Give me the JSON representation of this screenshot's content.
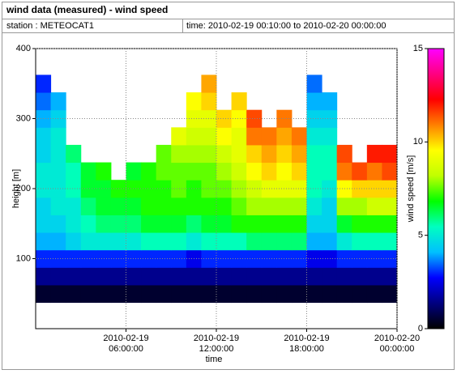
{
  "chart_data": {
    "type": "heatmap",
    "title": "wind data (measured) - wind speed",
    "station": "station : METEOCAT1",
    "time_range": "time: 2010-02-19 00:10:00 to 2010-02-20 00:00:00",
    "xlabel": "time",
    "ylabel": "height [m]",
    "zlabel": "wind speed [m/s]",
    "xlim": [
      0,
      24
    ],
    "xticks": [
      {
        "value": 6,
        "label": "2010-02-19\n06:00:00"
      },
      {
        "value": 12,
        "label": "2010-02-19\n12:00:00"
      },
      {
        "value": 18,
        "label": "2010-02-19\n18:00:00"
      },
      {
        "value": 24,
        "label": "2010-02-20\n00:00:00"
      }
    ],
    "ylim": [
      0,
      400
    ],
    "yticks": [
      100,
      200,
      300,
      400
    ],
    "zlim": [
      0,
      15
    ],
    "zticks": [
      0,
      5,
      10,
      15
    ],
    "grid": true,
    "colormap": [
      "#000000",
      "#000080",
      "#0000ff",
      "#00c0ff",
      "#00ffc0",
      "#00ff00",
      "#c0ff00",
      "#ffff00",
      "#ff8000",
      "#ff0000",
      "#ff0080",
      "#ff00ff"
    ],
    "x": [
      0.5,
      1.5,
      2.5,
      3.5,
      4.5,
      5.5,
      6.5,
      7.5,
      8.5,
      9.5,
      10.5,
      11.5,
      12.5,
      13.5,
      14.5,
      15.5,
      16.5,
      17.5,
      18.5,
      19.5,
      20.5,
      21.5,
      22.5,
      23.5
    ],
    "y": [
      50,
      75,
      100,
      125,
      150,
      175,
      200,
      225,
      250,
      275,
      300,
      325,
      350
    ],
    "z": [
      [
        0.5,
        0.5,
        0.5,
        0.5,
        0.5,
        0.5,
        0.5,
        0.5,
        0.5,
        0.5,
        0.5,
        0.5,
        0.5,
        0.5,
        0.5,
        0.5,
        0.5,
        0.5,
        0.5,
        0.5,
        0.5,
        0.5,
        0.5,
        0.5
      ],
      [
        1.5,
        1.5,
        1.5,
        1.5,
        1.5,
        1.5,
        1.5,
        1.5,
        1.5,
        1.5,
        1.5,
        1.5,
        1.5,
        1.5,
        1.5,
        1.5,
        1.5,
        1.5,
        1.5,
        1.5,
        1.5,
        1.5,
        1.5,
        1.5
      ],
      [
        3,
        3,
        3,
        3,
        3,
        3,
        3,
        3,
        3,
        3,
        2.5,
        3,
        3,
        3,
        3,
        3,
        3,
        3,
        2.5,
        2.5,
        3,
        3,
        3,
        3
      ],
      [
        4,
        4,
        4.5,
        5,
        5,
        5,
        5,
        5.5,
        5.5,
        5.5,
        5,
        5.5,
        5.5,
        5.5,
        6,
        6,
        6,
        6,
        4,
        4,
        5,
        5.5,
        5.5,
        5.5
      ],
      [
        4.5,
        4.5,
        5,
        5.5,
        6,
        6,
        6,
        6.5,
        6.5,
        6.5,
        6,
        6.5,
        6.5,
        7,
        7,
        7,
        7,
        7,
        4.5,
        4.5,
        6.5,
        7,
        7,
        7
      ],
      [
        4.5,
        5,
        5,
        6,
        6.5,
        6.5,
        6.5,
        7,
        7,
        7,
        7,
        7,
        7,
        7.5,
        8,
        8,
        8,
        8,
        5,
        4.5,
        8,
        8,
        8.5,
        8.5
      ],
      [
        5,
        5,
        5.5,
        6.5,
        6.5,
        7,
        7,
        7,
        7,
        7.5,
        7,
        7.5,
        7.5,
        8,
        8.5,
        9,
        9,
        9,
        5.5,
        5,
        9.5,
        10,
        10,
        10
      ],
      [
        5,
        5,
        5.5,
        6.5,
        7,
        null,
        6.5,
        7,
        7.5,
        7.5,
        7.5,
        7.5,
        8,
        8.5,
        9.5,
        10,
        9.5,
        10,
        5.5,
        5.5,
        11,
        11.5,
        11,
        11.5
      ],
      [
        4.5,
        5,
        6,
        null,
        null,
        null,
        null,
        null,
        7.5,
        8,
        8,
        8,
        8.5,
        9,
        10,
        10.5,
        10,
        10.5,
        5.5,
        5.5,
        11.5,
        null,
        12,
        12
      ],
      [
        4.5,
        5,
        null,
        null,
        null,
        null,
        null,
        null,
        null,
        9,
        8.5,
        8.5,
        9.5,
        9,
        11,
        11,
        10.5,
        11,
        5,
        5,
        null,
        null,
        null,
        null
      ],
      [
        4,
        4.5,
        null,
        null,
        null,
        null,
        null,
        null,
        null,
        null,
        9,
        9,
        10,
        9.5,
        11.5,
        null,
        11,
        null,
        4.5,
        4.5,
        null,
        null,
        null,
        null
      ],
      [
        3.5,
        4,
        null,
        null,
        null,
        null,
        null,
        null,
        null,
        null,
        9.5,
        10,
        null,
        10,
        null,
        null,
        null,
        null,
        4,
        4,
        null,
        null,
        null,
        null
      ],
      [
        3,
        null,
        null,
        null,
        null,
        null,
        null,
        null,
        null,
        null,
        null,
        10.5,
        null,
        null,
        null,
        null,
        null,
        null,
        3.5,
        null,
        null,
        null,
        null,
        null
      ]
    ]
  }
}
